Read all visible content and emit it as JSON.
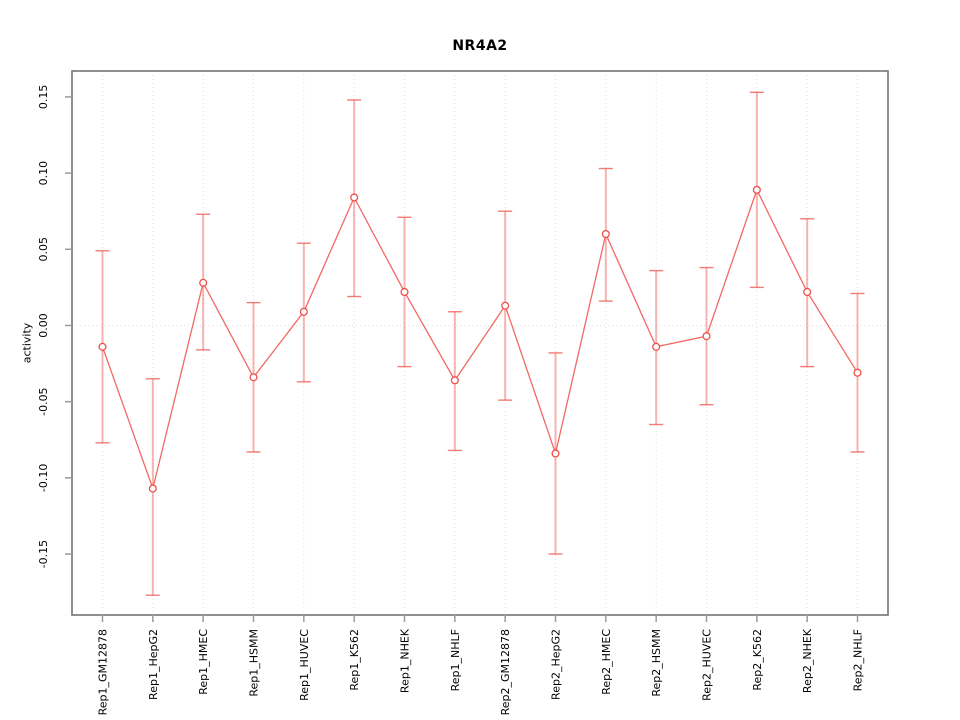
{
  "figure": {
    "title": "NR4A2",
    "y_axis_label": "activity"
  },
  "chart_data": {
    "type": "line",
    "title": "NR4A2",
    "xlabel": "",
    "ylabel": "activity",
    "legend_position": "none",
    "grid": "dotted vertical gridline at each category and dotted horizontal line at y=0",
    "marker": "open-circle",
    "error_bars": true,
    "categories": [
      "Rep1_GM12878",
      "Rep1_HepG2",
      "Rep1_HMEC",
      "Rep1_HSMM",
      "Rep1_HUVEC",
      "Rep1_K562",
      "Rep1_NHEK",
      "Rep1_NHLF",
      "Rep2_GM12878",
      "Rep2_HepG2",
      "Rep2_HMEC",
      "Rep2_HSMM",
      "Rep2_HUVEC",
      "Rep2_K562",
      "Rep2_NHEK",
      "Rep2_NHLF"
    ],
    "series": [
      {
        "name": "activity",
        "values": [
          -0.014,
          -0.107,
          0.028,
          -0.034,
          0.009,
          0.084,
          0.022,
          -0.036,
          0.013,
          -0.084,
          0.06,
          -0.014,
          -0.007,
          0.089,
          0.022,
          -0.031
        ],
        "err_high": [
          0.049,
          -0.035,
          0.073,
          0.015,
          0.054,
          0.148,
          0.071,
          0.009,
          0.075,
          -0.018,
          0.103,
          0.036,
          0.038,
          0.153,
          0.07,
          0.021
        ],
        "err_low": [
          -0.077,
          -0.177,
          -0.016,
          -0.083,
          -0.037,
          0.019,
          -0.027,
          -0.082,
          -0.049,
          -0.15,
          0.016,
          -0.065,
          -0.052,
          0.025,
          -0.027,
          -0.083
        ]
      }
    ],
    "ylim": [
      -0.19,
      0.167
    ],
    "yticks": {
      "values": [
        -0.15,
        -0.1,
        -0.05,
        0.0,
        0.05,
        0.1,
        0.15
      ],
      "labels": [
        "-0.15",
        "-0.10",
        "-0.05",
        "0.00",
        "0.05",
        "0.10",
        "0.15"
      ]
    },
    "colors": {
      "line": "#ef4f49",
      "point_fill": "#ffffff",
      "error_bar": "#f05a54",
      "grid": "#dedede",
      "box": "#737373",
      "tick": "#9a9a9a",
      "text": "#000000",
      "background": "#ffffff"
    }
  }
}
